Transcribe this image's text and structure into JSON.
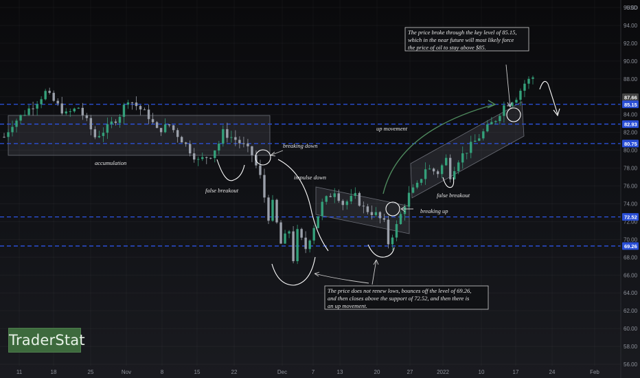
{
  "currency": "USD",
  "brand": "TraderStat",
  "chart_data": {
    "type": "candlestick",
    "ylim": [
      56,
      98
    ],
    "y_ticks": [
      "56.00",
      "58.00",
      "60.00",
      "62.00",
      "64.00",
      "66.00",
      "68.00",
      "70.00",
      "72.00",
      "74.00",
      "76.00",
      "78.00",
      "80.00",
      "82.00",
      "84.00",
      "86.00",
      "88.00",
      "90.00",
      "92.00",
      "94.00",
      "96.00"
    ],
    "x_ticks": [
      "11",
      "18",
      "25",
      "Nov",
      "8",
      "15",
      "22",
      "Dec",
      "7",
      "13",
      "20",
      "27",
      "2022",
      "10",
      "17",
      "24",
      "Feb"
    ],
    "last_price": "87.66",
    "levels": [
      {
        "label": "85.15",
        "value": 85.15
      },
      {
        "label": "82.93",
        "value": 82.93
      },
      {
        "label": "80.75",
        "value": 80.75
      },
      {
        "label": "72.52",
        "value": 72.52
      },
      {
        "label": "69.26",
        "value": 69.26
      }
    ],
    "price_path": [
      [
        0,
        81.5
      ],
      [
        2,
        83.0
      ],
      [
        5,
        84.2
      ],
      [
        8,
        85.5
      ],
      [
        10,
        86.5
      ],
      [
        13,
        85.0
      ],
      [
        15,
        84.0
      ],
      [
        18,
        84.8
      ],
      [
        20,
        83.2
      ],
      [
        22,
        81.5
      ],
      [
        25,
        82.5
      ],
      [
        28,
        84.0
      ],
      [
        30,
        85.8
      ],
      [
        33,
        84.6
      ],
      [
        35,
        83.8
      ],
      [
        37,
        82.2
      ],
      [
        40,
        82.8
      ],
      [
        43,
        81.2
      ],
      [
        45,
        80.0
      ],
      [
        47,
        78.8
      ],
      [
        50,
        79.5
      ],
      [
        52,
        80.8
      ],
      [
        53,
        82.0
      ],
      [
        56,
        81.2
      ],
      [
        58,
        80.5
      ],
      [
        60,
        79.5
      ],
      [
        62,
        77.0
      ],
      [
        64,
        72.5
      ],
      [
        65,
        74.0
      ],
      [
        67,
        69.5
      ],
      [
        69,
        71.0
      ],
      [
        70,
        67.8
      ],
      [
        71,
        70.8
      ],
      [
        73,
        69.0
      ],
      [
        75,
        71.5
      ],
      [
        77,
        74.0
      ],
      [
        80,
        75.5
      ],
      [
        82,
        74.0
      ],
      [
        85,
        74.8
      ],
      [
        87,
        73.5
      ],
      [
        90,
        72.8
      ],
      [
        92,
        71.8
      ],
      [
        93,
        69.6
      ],
      [
        95,
        71.5
      ],
      [
        97,
        74.0
      ],
      [
        98,
        75.0
      ],
      [
        100,
        76.0
      ],
      [
        102,
        78.0
      ],
      [
        105,
        77.5
      ],
      [
        107,
        79.0
      ],
      [
        108,
        77.2
      ],
      [
        110,
        79.0
      ],
      [
        113,
        80.5
      ],
      [
        115,
        81.5
      ],
      [
        117,
        82.5
      ],
      [
        119,
        83.5
      ],
      [
        121,
        85.0
      ],
      [
        124,
        86.0
      ],
      [
        126,
        87.5
      ],
      [
        128,
        88.2
      ]
    ]
  },
  "annotations": {
    "top_note": [
      "The price broke through the key level of 85.15,",
      "which in the near future will most likely force",
      "the price of oil to stay above $85."
    ],
    "bottom_note": [
      "The price does not renew lows, bounces off the level of 69.26,",
      "and then closes above the support of 72.52, and then there is",
      "an up movement."
    ],
    "accumulation": "accumulation",
    "false_breakout_1": "false breakout",
    "false_breakout_2": "false breakout",
    "breaking_down": "breaking down",
    "impulse_down": "impulse down",
    "up_movement": "up movement",
    "breaking_up": "breaking up"
  }
}
